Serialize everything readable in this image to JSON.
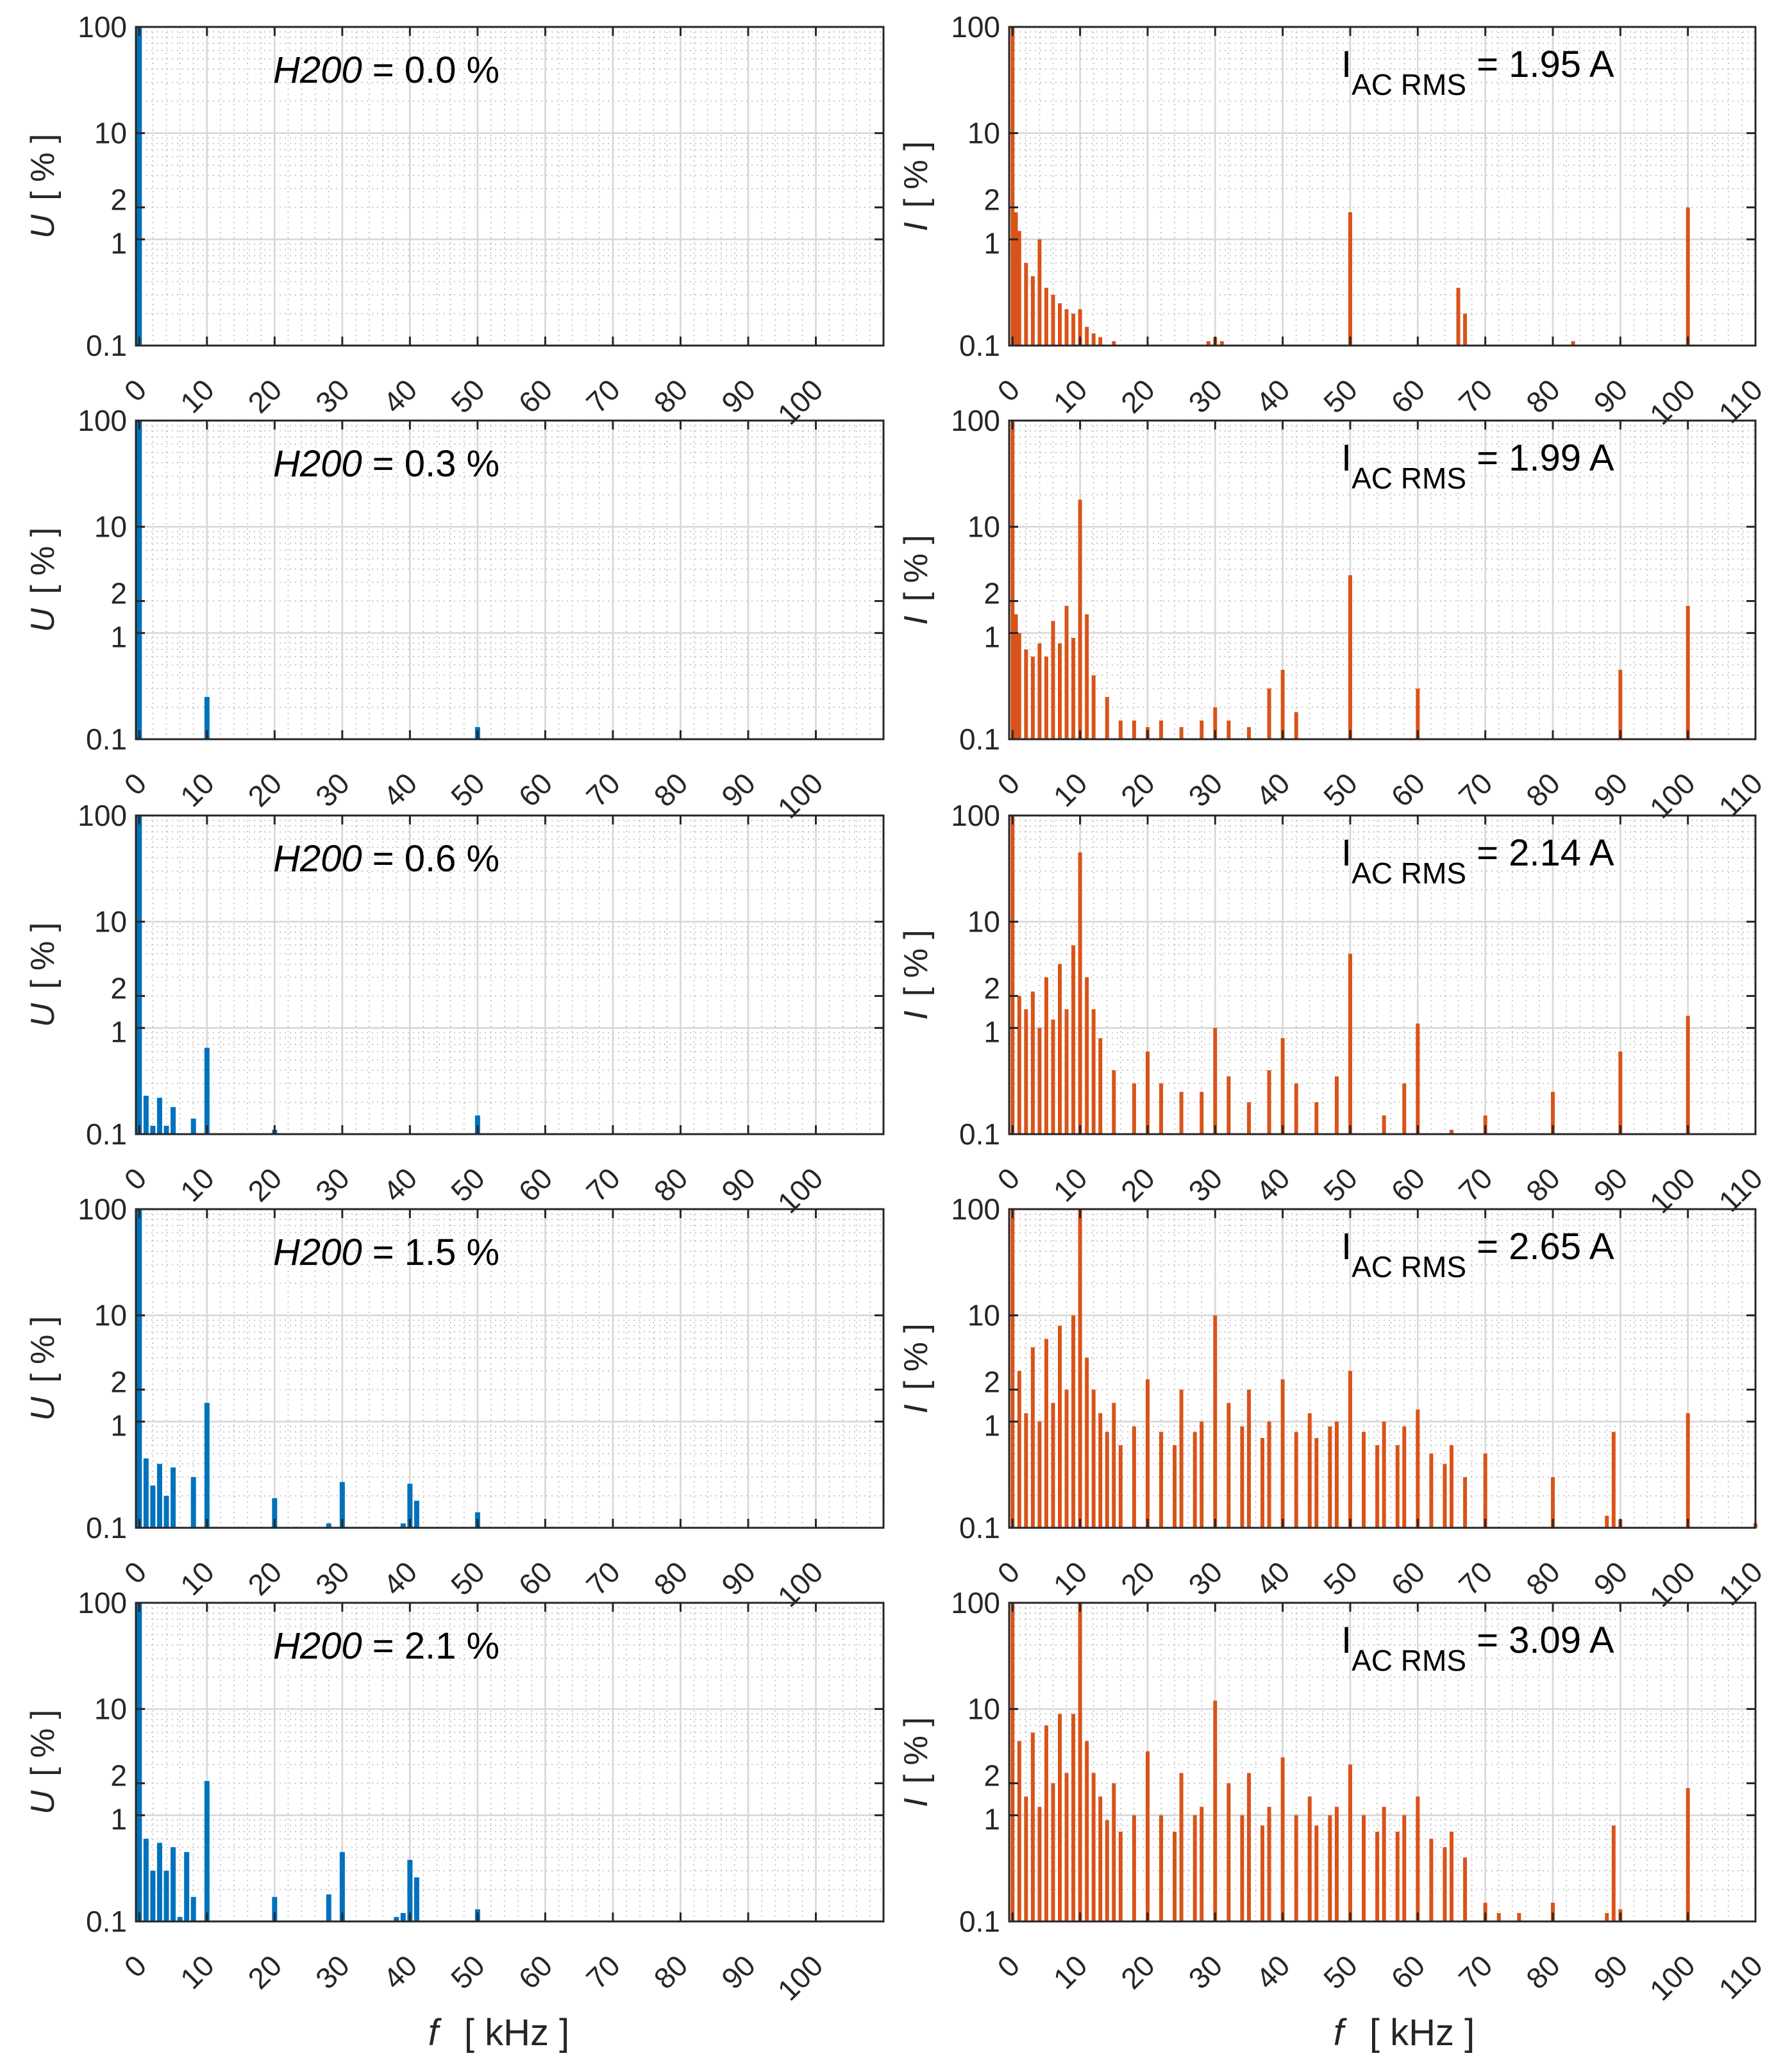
{
  "colors": {
    "voltage": "#0072BD",
    "current": "#D95319",
    "axis": "#262626"
  },
  "x_axis_label": {
    "var": "f",
    "unit": "[ kHz ]"
  },
  "chart_data": [
    {
      "panel": "voltage-1",
      "type": "bar",
      "title": "",
      "ylabel_var": "U",
      "ylabel_unit": "[ % ]",
      "yscale": "log",
      "ylim": [
        0.1,
        100
      ],
      "yticks": [
        "0.1",
        "1",
        "2",
        "10",
        "100"
      ],
      "xlim": [
        -0.5,
        110
      ],
      "xticks": [
        "0",
        "10",
        "20",
        "30",
        "40",
        "50",
        "60",
        "70",
        "80",
        "90",
        "100"
      ],
      "annotation": {
        "var": "H200",
        "value": " = 0.0 %"
      },
      "x": [
        0
      ],
      "values": [
        100
      ]
    },
    {
      "panel": "current-1",
      "type": "bar",
      "title": "",
      "ylabel_var": "I",
      "ylabel_unit": "[ % ]",
      "yscale": "log",
      "ylim": [
        0.1,
        100
      ],
      "yticks": [
        "0.1",
        "1",
        "2",
        "10",
        "100"
      ],
      "xlim": [
        -0.5,
        110
      ],
      "xticks": [
        "0",
        "10",
        "20",
        "30",
        "40",
        "50",
        "60",
        "70",
        "80",
        "90",
        "100",
        "110"
      ],
      "annotation": {
        "main": "I",
        "sub": "AC RMS",
        "value": " = 1.95 A"
      },
      "x": [
        0,
        0.5,
        1,
        2,
        3,
        4,
        5,
        6,
        7,
        8,
        9,
        10,
        11,
        12,
        13,
        15,
        29,
        30,
        31,
        50,
        66,
        67,
        83,
        100
      ],
      "values": [
        100,
        1.8,
        1.2,
        0.6,
        0.45,
        1.0,
        0.35,
        0.3,
        0.25,
        0.22,
        0.2,
        0.22,
        0.15,
        0.13,
        0.12,
        0.11,
        0.11,
        0.12,
        0.11,
        1.8,
        0.35,
        0.2,
        0.11,
        2.0
      ]
    },
    {
      "panel": "voltage-2",
      "type": "bar",
      "title": "",
      "ylabel_var": "U",
      "ylabel_unit": "[ % ]",
      "yscale": "log",
      "ylim": [
        0.1,
        100
      ],
      "yticks": [
        "0.1",
        "1",
        "2",
        "10",
        "100"
      ],
      "xlim": [
        -0.5,
        110
      ],
      "xticks": [
        "0",
        "10",
        "20",
        "30",
        "40",
        "50",
        "60",
        "70",
        "80",
        "90",
        "100"
      ],
      "annotation": {
        "var": "H200",
        "value": " = 0.3 %"
      },
      "x": [
        0,
        3,
        10,
        50
      ],
      "values": [
        100,
        0.1,
        0.25,
        0.13
      ]
    },
    {
      "panel": "current-2",
      "type": "bar",
      "title": "",
      "ylabel_var": "I",
      "ylabel_unit": "[ % ]",
      "yscale": "log",
      "ylim": [
        0.1,
        100
      ],
      "yticks": [
        "0.1",
        "1",
        "2",
        "10",
        "100"
      ],
      "xlim": [
        -0.5,
        110
      ],
      "xticks": [
        "0",
        "10",
        "20",
        "30",
        "40",
        "50",
        "60",
        "70",
        "80",
        "90",
        "100",
        "110"
      ],
      "annotation": {
        "main": "I",
        "sub": "AC RMS",
        "value": " = 1.99 A"
      },
      "x": [
        0,
        0.5,
        1,
        2,
        3,
        4,
        5,
        6,
        7,
        8,
        9,
        10,
        11,
        12,
        14,
        16,
        18,
        20,
        22,
        25,
        28,
        30,
        32,
        35,
        38,
        40,
        42,
        50,
        60,
        90,
        100
      ],
      "values": [
        100,
        1.5,
        1.0,
        0.7,
        0.6,
        0.8,
        0.6,
        1.3,
        0.8,
        1.8,
        0.9,
        18,
        1.5,
        0.4,
        0.25,
        0.15,
        0.15,
        0.13,
        0.15,
        0.13,
        0.15,
        0.2,
        0.15,
        0.13,
        0.3,
        0.45,
        0.18,
        3.5,
        0.3,
        0.45,
        1.8
      ]
    },
    {
      "panel": "voltage-3",
      "type": "bar",
      "title": "",
      "ylabel_var": "U",
      "ylabel_unit": "[ % ]",
      "yscale": "log",
      "ylim": [
        0.1,
        100
      ],
      "yticks": [
        "0.1",
        "1",
        "2",
        "10",
        "100"
      ],
      "xlim": [
        -0.5,
        110
      ],
      "xticks": [
        "0",
        "10",
        "20",
        "30",
        "40",
        "50",
        "60",
        "70",
        "80",
        "90",
        "100"
      ],
      "annotation": {
        "var": "H200",
        "value": " = 0.6 %"
      },
      "x": [
        0,
        1,
        2,
        3,
        4,
        5,
        6,
        8,
        10,
        20,
        50
      ],
      "values": [
        100,
        0.23,
        0.12,
        0.22,
        0.12,
        0.18,
        0.1,
        0.14,
        0.65,
        0.11,
        0.15
      ]
    },
    {
      "panel": "current-3",
      "type": "bar",
      "title": "",
      "ylabel_var": "I",
      "ylabel_unit": "[ % ]",
      "yscale": "log",
      "ylim": [
        0.1,
        100
      ],
      "yticks": [
        "0.1",
        "1",
        "2",
        "10",
        "100"
      ],
      "xlim": [
        -0.5,
        110
      ],
      "xticks": [
        "0",
        "10",
        "20",
        "30",
        "40",
        "50",
        "60",
        "70",
        "80",
        "90",
        "100",
        "110"
      ],
      "annotation": {
        "main": "I",
        "sub": "AC RMS",
        "value": " = 2.14 A"
      },
      "x": [
        0,
        1,
        2,
        3,
        4,
        5,
        6,
        7,
        8,
        9,
        10,
        11,
        12,
        13,
        15,
        18,
        20,
        22,
        25,
        28,
        30,
        32,
        35,
        38,
        40,
        42,
        45,
        48,
        50,
        55,
        58,
        60,
        65,
        70,
        80,
        90,
        100
      ],
      "values": [
        100,
        2.0,
        1.5,
        2.2,
        1.0,
        3.0,
        1.2,
        4.0,
        1.5,
        6.0,
        45,
        3.0,
        1.5,
        0.8,
        0.4,
        0.3,
        0.6,
        0.3,
        0.25,
        0.25,
        1.0,
        0.35,
        0.2,
        0.4,
        0.8,
        0.3,
        0.2,
        0.35,
        5.0,
        0.15,
        0.3,
        1.1,
        0.11,
        0.15,
        0.25,
        0.6,
        1.3
      ]
    },
    {
      "panel": "voltage-4",
      "type": "bar",
      "title": "",
      "ylabel_var": "U",
      "ylabel_unit": "[ % ]",
      "yscale": "log",
      "ylim": [
        0.1,
        100
      ],
      "yticks": [
        "0.1",
        "1",
        "2",
        "10",
        "100"
      ],
      "xlim": [
        -0.5,
        110
      ],
      "xticks": [
        "0",
        "10",
        "20",
        "30",
        "40",
        "50",
        "60",
        "70",
        "80",
        "90",
        "100"
      ],
      "annotation": {
        "var": "H200",
        "value": " = 1.5 %"
      },
      "x": [
        0,
        1,
        2,
        3,
        4,
        5,
        6,
        8,
        10,
        20,
        28,
        30,
        39,
        40,
        41,
        50
      ],
      "values": [
        100,
        0.45,
        0.25,
        0.4,
        0.2,
        0.37,
        0.1,
        0.3,
        1.5,
        0.19,
        0.11,
        0.27,
        0.11,
        0.26,
        0.18,
        0.14
      ]
    },
    {
      "panel": "current-4",
      "type": "bar",
      "title": "",
      "ylabel_var": "I",
      "ylabel_unit": "[ % ]",
      "yscale": "log",
      "ylim": [
        0.1,
        100
      ],
      "yticks": [
        "0.1",
        "1",
        "2",
        "10",
        "100"
      ],
      "xlim": [
        -0.5,
        110
      ],
      "xticks": [
        "0",
        "10",
        "20",
        "30",
        "40",
        "50",
        "60",
        "70",
        "80",
        "90",
        "100",
        "110"
      ],
      "annotation": {
        "main": "I",
        "sub": "AC RMS",
        "value": " = 2.65 A"
      },
      "x": [
        0,
        1,
        2,
        3,
        4,
        5,
        6,
        7,
        8,
        9,
        10,
        11,
        12,
        13,
        14,
        15,
        16,
        18,
        20,
        22,
        24,
        25,
        27,
        28,
        30,
        32,
        34,
        35,
        37,
        38,
        40,
        42,
        44,
        45,
        47,
        48,
        50,
        52,
        54,
        55,
        57,
        58,
        60,
        62,
        64,
        65,
        67,
        70,
        80,
        88,
        89,
        90,
        100,
        110
      ],
      "values": [
        100,
        3.0,
        1.2,
        5.0,
        1.0,
        6.0,
        1.5,
        8.0,
        2.0,
        10,
        100,
        4.0,
        2.0,
        1.2,
        0.8,
        1.5,
        0.6,
        0.9,
        2.5,
        0.8,
        0.6,
        2.0,
        0.8,
        1.0,
        10,
        1.5,
        0.9,
        2.0,
        0.7,
        1.0,
        2.5,
        0.8,
        1.2,
        0.7,
        0.9,
        1.0,
        3.0,
        0.8,
        0.6,
        1.0,
        0.6,
        0.9,
        1.3,
        0.5,
        0.4,
        0.6,
        0.3,
        0.5,
        0.3,
        0.13,
        0.8,
        0.12,
        1.2,
        0.11
      ]
    },
    {
      "panel": "voltage-5",
      "type": "bar",
      "title": "",
      "ylabel_var": "U",
      "ylabel_unit": "[ % ]",
      "yscale": "log",
      "ylim": [
        0.1,
        100
      ],
      "yticks": [
        "0.1",
        "1",
        "2",
        "10",
        "100"
      ],
      "xlim": [
        -0.5,
        110
      ],
      "xticks": [
        "0",
        "10",
        "20",
        "30",
        "40",
        "50",
        "60",
        "70",
        "80",
        "90",
        "100"
      ],
      "annotation": {
        "var": "H200",
        "value": " = 2.1 %"
      },
      "x": [
        0,
        1,
        2,
        3,
        4,
        5,
        6,
        7,
        8,
        10,
        20,
        28,
        30,
        38,
        39,
        40,
        41,
        44,
        50
      ],
      "values": [
        100,
        0.6,
        0.3,
        0.55,
        0.3,
        0.5,
        0.11,
        0.45,
        0.17,
        2.1,
        0.17,
        0.18,
        0.45,
        0.11,
        0.12,
        0.38,
        0.26,
        0.1,
        0.13
      ]
    },
    {
      "panel": "current-5",
      "type": "bar",
      "title": "",
      "ylabel_var": "I",
      "ylabel_unit": "[ % ]",
      "yscale": "log",
      "ylim": [
        0.1,
        100
      ],
      "yticks": [
        "0.1",
        "1",
        "2",
        "10",
        "100"
      ],
      "xlim": [
        -0.5,
        110
      ],
      "xticks": [
        "0",
        "10",
        "20",
        "30",
        "40",
        "50",
        "60",
        "70",
        "80",
        "90",
        "100",
        "110"
      ],
      "annotation": {
        "main": "I",
        "sub": "AC RMS",
        "value": " = 3.09 A"
      },
      "x": [
        0,
        1,
        2,
        3,
        4,
        5,
        6,
        7,
        8,
        9,
        10,
        11,
        12,
        13,
        14,
        15,
        16,
        18,
        20,
        22,
        24,
        25,
        27,
        28,
        30,
        32,
        34,
        35,
        37,
        38,
        40,
        42,
        44,
        45,
        47,
        48,
        50,
        52,
        54,
        55,
        57,
        58,
        60,
        62,
        64,
        65,
        67,
        70,
        72,
        75,
        80,
        88,
        89,
        90,
        100
      ],
      "values": [
        100,
        5.0,
        1.5,
        6.0,
        1.2,
        7.0,
        2.0,
        9.0,
        2.5,
        9.0,
        100,
        5.0,
        2.5,
        1.5,
        0.9,
        2.0,
        0.7,
        1.0,
        4.0,
        1.0,
        0.7,
        2.5,
        1.0,
        1.2,
        12,
        2.0,
        1.0,
        2.5,
        0.8,
        1.2,
        3.5,
        1.0,
        1.5,
        0.8,
        1.0,
        1.2,
        3.0,
        1.0,
        0.7,
        1.2,
        0.7,
        1.0,
        1.5,
        0.6,
        0.5,
        0.7,
        0.4,
        0.15,
        0.12,
        0.12,
        0.15,
        0.12,
        0.8,
        0.13,
        1.8
      ]
    }
  ]
}
